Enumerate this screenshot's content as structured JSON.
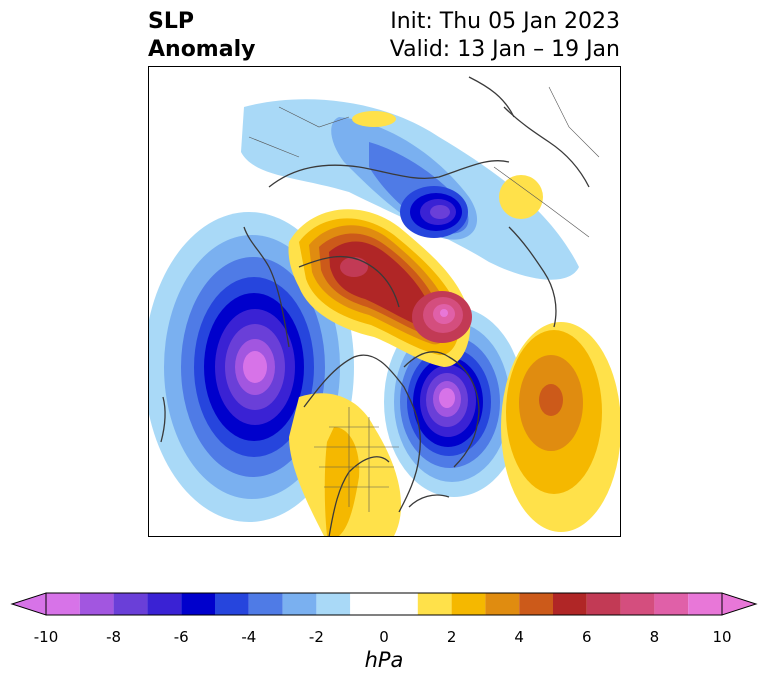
{
  "title": {
    "left_line1": "SLP",
    "left_line2": "Anomaly",
    "right_line1": "Init: Thu 05 Jan 2023",
    "right_line2": "Valid: 13 Jan – 19 Jan"
  },
  "colorbar": {
    "units": "hPa",
    "min": -10,
    "max": 10,
    "tick_labels": [
      "-10",
      "-8",
      "-6",
      "-4",
      "-2",
      "0",
      "2",
      "4",
      "6",
      "8",
      "10"
    ],
    "bins": [
      {
        "from": -10,
        "to": -9,
        "color": "#d773e8"
      },
      {
        "from": -9,
        "to": -8,
        "color": "#a256e0"
      },
      {
        "from": -8,
        "to": -7,
        "color": "#6a3fd8"
      },
      {
        "from": -7,
        "to": -6,
        "color": "#3a22d4"
      },
      {
        "from": -6,
        "to": -5,
        "color": "#0000cc"
      },
      {
        "from": -5,
        "to": -4,
        "color": "#2645dd"
      },
      {
        "from": -4,
        "to": -3,
        "color": "#4f7be6"
      },
      {
        "from": -3,
        "to": -2,
        "color": "#7ab0f0"
      },
      {
        "from": -2,
        "to": -1,
        "color": "#a9d9f7"
      },
      {
        "from": -1,
        "to": 1,
        "color": "#ffffff"
      },
      {
        "from": 1,
        "to": 2,
        "color": "#ffe14a"
      },
      {
        "from": 2,
        "to": 3,
        "color": "#f5b800"
      },
      {
        "from": 3,
        "to": 4,
        "color": "#e08c10"
      },
      {
        "from": 4,
        "to": 5,
        "color": "#cc5a1a"
      },
      {
        "from": 5,
        "to": 6,
        "color": "#b02626"
      },
      {
        "from": 6,
        "to": 7,
        "color": "#c23a55"
      },
      {
        "from": 7,
        "to": 8,
        "color": "#d44e7e"
      },
      {
        "from": 8,
        "to": 9,
        "color": "#e060a8"
      },
      {
        "from": 9,
        "to": 10,
        "color": "#e877d8"
      }
    ],
    "extend_low_color": "#d773e8",
    "extend_high_color": "#e877d8"
  },
  "map_data": {
    "type": "filled-contour",
    "variable": "Sea level pressure anomaly",
    "units": "hPa",
    "projection": "polar-stereographic",
    "features": [
      {
        "kind": "low",
        "region": "North Pacific / Gulf of Alaska",
        "min_value": -10
      },
      {
        "kind": "low",
        "region": "Northwest Atlantic / Labrador",
        "min_value": -10
      },
      {
        "kind": "low",
        "region": "Northern Russia / Barents-Kara",
        "min_value": -7
      },
      {
        "kind": "high",
        "region": "Arctic Ocean / Greenland",
        "max_value": 10
      },
      {
        "kind": "high",
        "region": "Central Atlantic",
        "max_value": 5
      },
      {
        "kind": "high",
        "region": "Southern United States",
        "max_value": 2
      }
    ]
  }
}
